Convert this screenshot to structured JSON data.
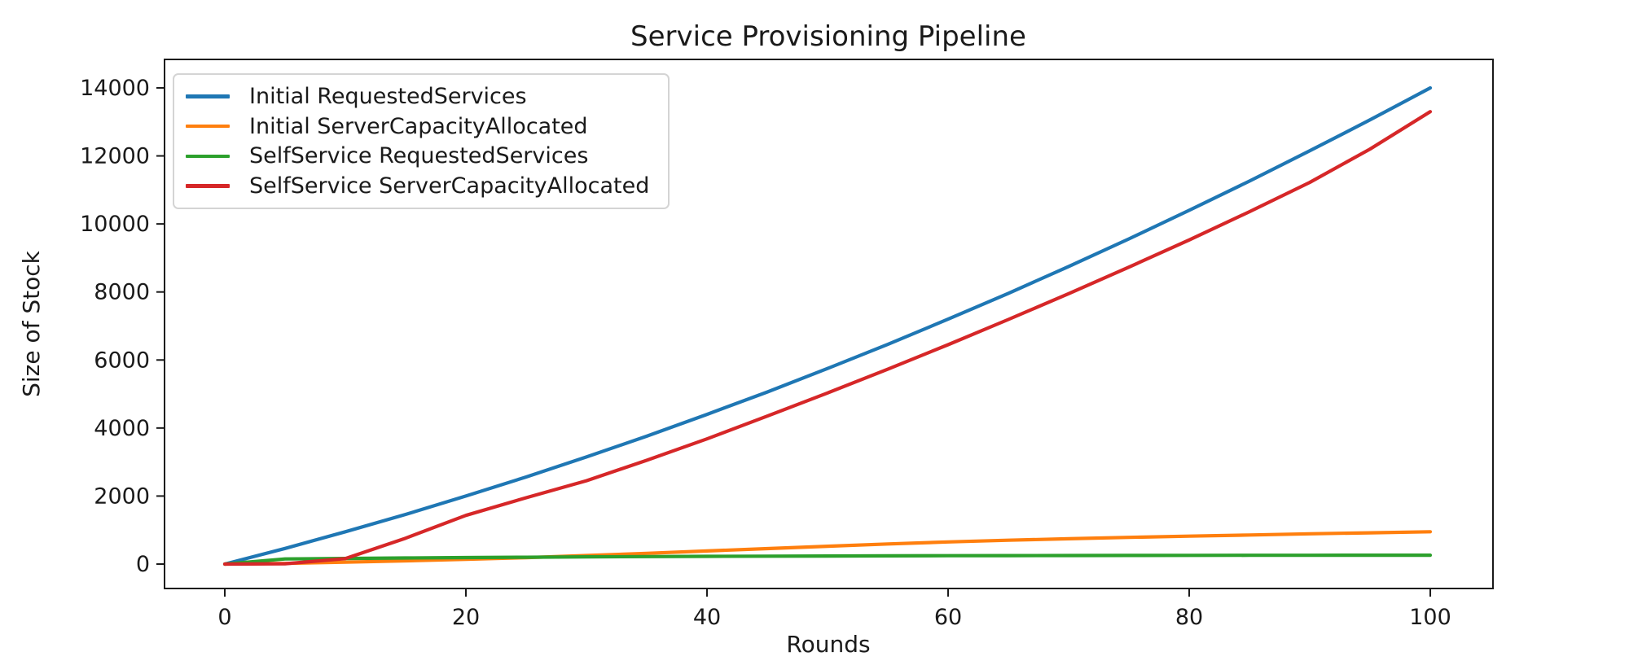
{
  "figure": {
    "title": "Service Provisioning Pipeline",
    "xlabel": "Rounds",
    "ylabel": "Size of Stock"
  },
  "chart_data": {
    "type": "line",
    "title": "Service Provisioning Pipeline",
    "xlabel": "Rounds",
    "ylabel": "Size of Stock",
    "grid": false,
    "legend_position": "upper left",
    "xlim": [
      -5,
      105.2
    ],
    "ylim": [
      -718,
      14837
    ],
    "xticks": [
      0,
      20,
      40,
      60,
      80,
      100
    ],
    "yticks": [
      0,
      2000,
      4000,
      6000,
      8000,
      10000,
      12000,
      14000
    ],
    "x": [
      0,
      5,
      10,
      15,
      20,
      25,
      30,
      35,
      40,
      45,
      50,
      55,
      60,
      65,
      70,
      75,
      80,
      85,
      90,
      95,
      100
    ],
    "series": [
      {
        "name": "Initial RequestedServices",
        "color": "#1f77b4",
        "values": [
          0,
          460,
          950,
          1460,
          2000,
          2560,
          3150,
          3760,
          4400,
          5060,
          5750,
          6460,
          7200,
          7960,
          8750,
          9560,
          10400,
          11260,
          12150,
          13060,
          14000
        ]
      },
      {
        "name": "Initial ServerCapacityAllocated",
        "color": "#ff7f0e",
        "values": [
          0,
          20,
          55,
          95,
          140,
          190,
          250,
          315,
          385,
          455,
          525,
          590,
          650,
          700,
          745,
          785,
          820,
          855,
          890,
          920,
          950
        ]
      },
      {
        "name": "SelfService RequestedServices",
        "color": "#2ca02c",
        "values": [
          0,
          150,
          165,
          180,
          192,
          202,
          212,
          220,
          227,
          233,
          238,
          242,
          246,
          249,
          252,
          254,
          256,
          258,
          259,
          260,
          260
        ]
      },
      {
        "name": "SelfService ServerCapacityAllocated",
        "color": "#d62728",
        "values": [
          0,
          10,
          160,
          760,
          1430,
          1950,
          2450,
          3050,
          3680,
          4350,
          5030,
          5730,
          6450,
          7190,
          7950,
          8730,
          9530,
          10360,
          11220,
          12200,
          13300
        ]
      }
    ]
  }
}
